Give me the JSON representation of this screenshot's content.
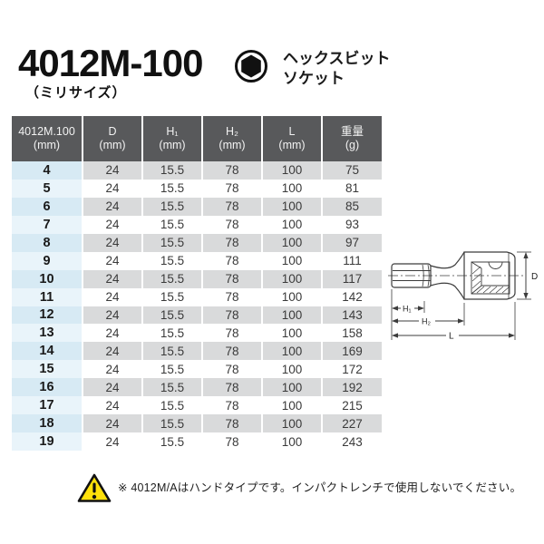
{
  "header": {
    "title": "4012M-100",
    "subtitle": "（ミリサイズ）",
    "type_line1": "ヘックスビット",
    "type_line2": "ソケット"
  },
  "table": {
    "columns": [
      {
        "label": "4012M.100",
        "unit": "(mm)"
      },
      {
        "label": "D",
        "unit": "(mm)"
      },
      {
        "label": "H₁",
        "unit": "(mm)"
      },
      {
        "label": "H₂",
        "unit": "(mm)"
      },
      {
        "label": "L",
        "unit": "(mm)"
      },
      {
        "label": "重量",
        "unit": "(g)"
      }
    ],
    "rows": [
      [
        "4",
        "24",
        "15.5",
        "78",
        "100",
        "75"
      ],
      [
        "5",
        "24",
        "15.5",
        "78",
        "100",
        "81"
      ],
      [
        "6",
        "24",
        "15.5",
        "78",
        "100",
        "85"
      ],
      [
        "7",
        "24",
        "15.5",
        "78",
        "100",
        "93"
      ],
      [
        "8",
        "24",
        "15.5",
        "78",
        "100",
        "97"
      ],
      [
        "9",
        "24",
        "15.5",
        "78",
        "100",
        "111"
      ],
      [
        "10",
        "24",
        "15.5",
        "78",
        "100",
        "117"
      ],
      [
        "11",
        "24",
        "15.5",
        "78",
        "100",
        "142"
      ],
      [
        "12",
        "24",
        "15.5",
        "78",
        "100",
        "143"
      ],
      [
        "13",
        "24",
        "15.5",
        "78",
        "100",
        "158"
      ],
      [
        "14",
        "24",
        "15.5",
        "78",
        "100",
        "169"
      ],
      [
        "15",
        "24",
        "15.5",
        "78",
        "100",
        "172"
      ],
      [
        "16",
        "24",
        "15.5",
        "78",
        "100",
        "192"
      ],
      [
        "17",
        "24",
        "15.5",
        "78",
        "100",
        "215"
      ],
      [
        "18",
        "24",
        "15.5",
        "78",
        "100",
        "227"
      ],
      [
        "19",
        "24",
        "15.5",
        "78",
        "100",
        "243"
      ]
    ]
  },
  "diagram": {
    "labels": {
      "d": "D",
      "h1": "H₁",
      "h2": "H₂",
      "l": "L"
    }
  },
  "note": {
    "text": "※ 4012M/Aはハンドタイプです。インパクトレンチで使用しないでください。"
  },
  "colors": {
    "header_bg": "#58595b",
    "header_text": "#f2f2f2",
    "row_gray": "#d9dadb",
    "row_white": "#ffffff",
    "size_gray": "#d7eaf4",
    "size_white": "#e9f4fa",
    "warn_yellow": "#ffe10a"
  }
}
